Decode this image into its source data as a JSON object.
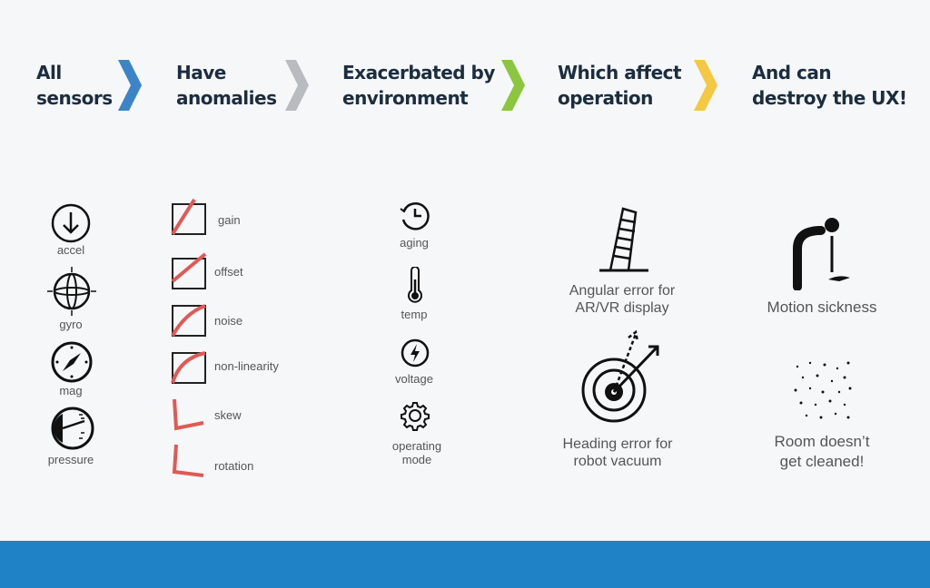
{
  "steps": [
    {
      "title_line1": "All",
      "title_line2": "sensors",
      "chevron_color": "#3b84c6"
    },
    {
      "title_line1": "Have",
      "title_line2": "anomalies",
      "chevron_color": "#b9bcbf"
    },
    {
      "title_line1": "Exacerbated by",
      "title_line2": "environment",
      "chevron_color": "#8cc63f"
    },
    {
      "title_line1": "Which affect",
      "title_line2": "operation",
      "chevron_color": "#f5c843"
    },
    {
      "title_line1": "And can",
      "title_line2": "destroy the UX!"
    }
  ],
  "sensors": [
    {
      "label": "accel",
      "icon": "arrow-down-circle-icon"
    },
    {
      "label": "gyro",
      "icon": "gyroscope-icon"
    },
    {
      "label": "mag",
      "icon": "compass-icon"
    },
    {
      "label": "pressure",
      "icon": "pressure-gauge-icon"
    }
  ],
  "anomalies": [
    {
      "label": "gain"
    },
    {
      "label": "offset"
    },
    {
      "label": "noise"
    },
    {
      "label": "non-linearity"
    },
    {
      "label": "skew"
    },
    {
      "label": "rotation"
    }
  ],
  "environment": [
    {
      "label": "aging",
      "icon": "clock-icon"
    },
    {
      "label": "temp",
      "icon": "thermometer-icon"
    },
    {
      "label": "voltage",
      "icon": "lightning-icon"
    },
    {
      "label_line1": "operating",
      "label_line2": "mode",
      "icon": "gear-icon"
    }
  ],
  "operation": [
    {
      "label_line1": "Angular error for",
      "label_line2": "AR/VR display",
      "icon": "leaning-tower-icon"
    },
    {
      "label_line1": "Heading error for",
      "label_line2": "robot vacuum",
      "icon": "robot-vacuum-icon"
    }
  ],
  "ux": [
    {
      "label_line1": "Motion sickness",
      "icon": "vomiting-person-icon"
    },
    {
      "label_line1": "Room doesn’t",
      "label_line2": "get cleaned!",
      "icon": "dust-icon"
    }
  ],
  "colors": {
    "anomaly_red": "#e05a55",
    "band": "#1f82c6",
    "heading": "#1b2d3f"
  }
}
